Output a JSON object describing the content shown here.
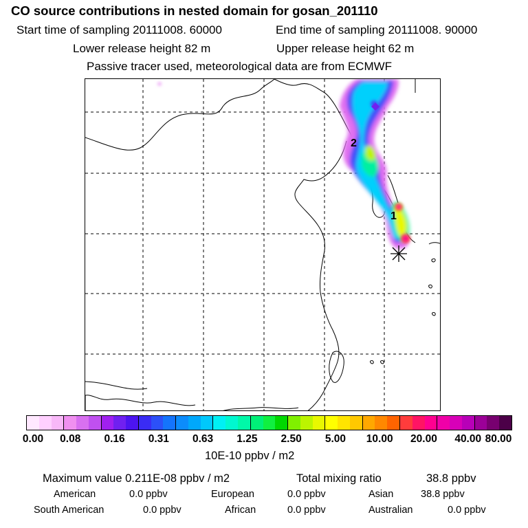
{
  "header": {
    "title": "CO  source contributions in nested domain for gosan_201110",
    "start_time": "Start time of sampling 20111008. 60000",
    "end_time": "End time of sampling 20111008. 90000",
    "lower_height": "Lower release height   82 m",
    "upper_height": "Upper release height   62 m",
    "note": "Passive tracer used, meteorological data are from ECMWF"
  },
  "map": {
    "contour_labels": [
      "2",
      "1"
    ],
    "station_marker_icon": "asterisk-icon"
  },
  "colorbar": {
    "ticks": [
      "0.00",
      "0.08",
      "0.16",
      "0.31",
      "0.63",
      "1.25",
      "2.50",
      "5.00",
      "10.00",
      "20.00",
      "40.00",
      "80.00"
    ],
    "unit": "10E-10 ppbv / m2",
    "colors": [
      "#ffe8ff",
      "#ffd0ff",
      "#f8b8f8",
      "#f090f0",
      "#d870f0",
      "#c050f0",
      "#a020f0",
      "#7020f0",
      "#4c14f0",
      "#3a2cf4",
      "#2c50f8",
      "#1474fc",
      "#0c8cfc",
      "#00a8fc",
      "#00c8fc",
      "#00f0f4",
      "#00f8d0",
      "#00f8a8",
      "#00f078",
      "#10f040",
      "#00d800",
      "#80f000",
      "#bcf400",
      "#e8f800",
      "#ffff00",
      "#ffe400",
      "#ffc800",
      "#ffa800",
      "#ff8800",
      "#ff6400",
      "#ff3c3c",
      "#ff1464",
      "#ff0090",
      "#f000a8",
      "#d800b8",
      "#b800b8",
      "#9c0098",
      "#780070",
      "#4c0048"
    ]
  },
  "stats": {
    "max_label": "Maximum value  0.211E-08 ppbv / m2",
    "total_label": "Total mixing ratio",
    "total_value": "38.8 ppbv",
    "regions": [
      {
        "name": "American",
        "value": "0.0 ppbv"
      },
      {
        "name": "European",
        "value": "0.0 ppbv"
      },
      {
        "name": "Asian",
        "value": "38.8 ppbv"
      },
      {
        "name": "South American",
        "value": "0.0 ppbv"
      },
      {
        "name": "African",
        "value": "0.0 ppbv"
      },
      {
        "name": "Australian",
        "value": "0.0 ppbv"
      }
    ]
  }
}
